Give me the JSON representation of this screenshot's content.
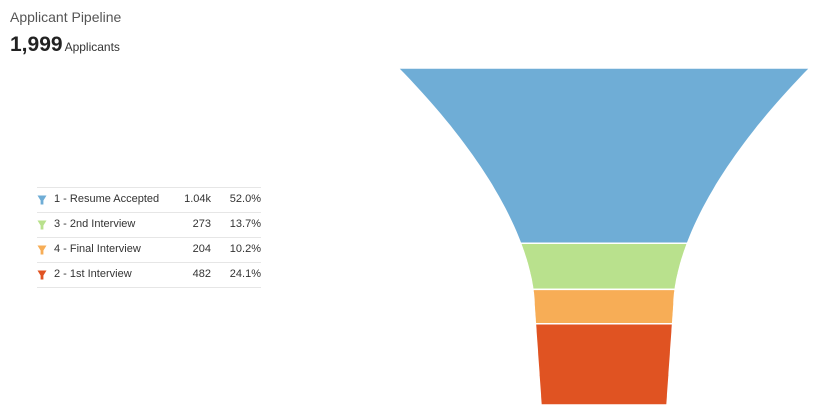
{
  "widget": {
    "title": "Applicant Pipeline",
    "total_value": "1,999",
    "total_unit": "Applicants"
  },
  "legend": {
    "rows": [
      {
        "label": "1 - Resume Accepted",
        "count": "1.04k",
        "percent": "52.0%",
        "color": "#6fadd6"
      },
      {
        "label": "3 - 2nd Interview",
        "count": "273",
        "percent": "13.7%",
        "color": "#b9e18d"
      },
      {
        "label": "4 - Final Interview",
        "count": "204",
        "percent": "10.2%",
        "color": "#f7ad56"
      },
      {
        "label": "2 - 1st Interview",
        "count": "482",
        "percent": "24.1%",
        "color": "#e05322"
      }
    ]
  },
  "chart_data": {
    "type": "funnel",
    "title": "Applicant Pipeline",
    "total": 1999,
    "categories": [
      "1 - Resume Accepted",
      "3 - 2nd Interview",
      "4 - Final Interview",
      "2 - 1st Interview"
    ],
    "values": [
      1040,
      273,
      204,
      482
    ],
    "percentages": [
      52.0,
      13.7,
      10.2,
      24.1
    ],
    "colors": [
      "#6fadd6",
      "#b9e18d",
      "#f7ad56",
      "#e05322"
    ],
    "legend_position": "left"
  }
}
